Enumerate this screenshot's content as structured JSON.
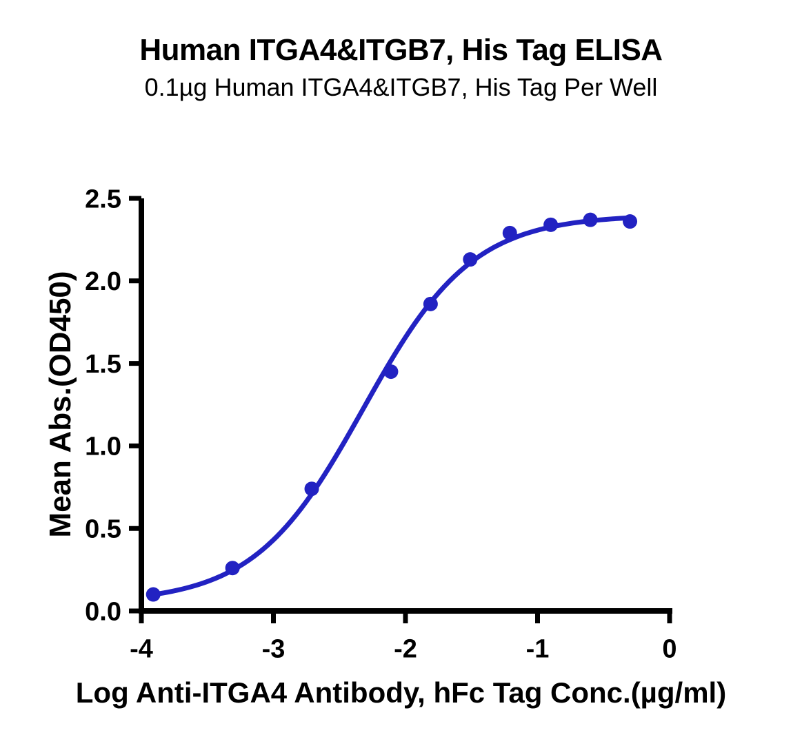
{
  "chart_data": {
    "type": "scatter",
    "title": "Human ITGA4&ITGB7, His Tag ELISA",
    "subtitle": "0.1µg Human ITGA4&ITGB7, His Tag Per Well",
    "xlabel": "Log Anti-ITGA4 Antibody, hFc Tag Conc.(µg/ml)",
    "ylabel": "Mean Abs.(OD450)",
    "x": [
      -3.91,
      -3.31,
      -2.71,
      -2.11,
      -1.81,
      -1.51,
      -1.21,
      -0.9,
      -0.6,
      -0.3
    ],
    "y": [
      0.1,
      0.26,
      0.74,
      1.45,
      1.86,
      2.13,
      2.29,
      2.34,
      2.37,
      2.36
    ],
    "xlim": [
      -4,
      0
    ],
    "ylim": [
      0,
      2.5
    ],
    "x_ticks": [
      -4,
      -3,
      -2,
      -1,
      0
    ],
    "x_tick_labels": [
      "-4",
      "-3",
      "-2",
      "-1",
      "0"
    ],
    "y_ticks": [
      0,
      0.5,
      1,
      1.5,
      2,
      2.5
    ],
    "y_tick_labels": [
      "0.0",
      "0.5",
      "1.0",
      "1.5",
      "2.0",
      "2.5"
    ],
    "grid": false,
    "legend": "none",
    "curve_fit": {
      "model": "4PL",
      "bottom": 0.05,
      "top": 2.4,
      "logEC50": -2.32,
      "hillslope": 1.05
    },
    "colors": {
      "curve": "#2222C2",
      "marker": "#2222C2",
      "axis": "#000000",
      "text": "#000000"
    }
  }
}
